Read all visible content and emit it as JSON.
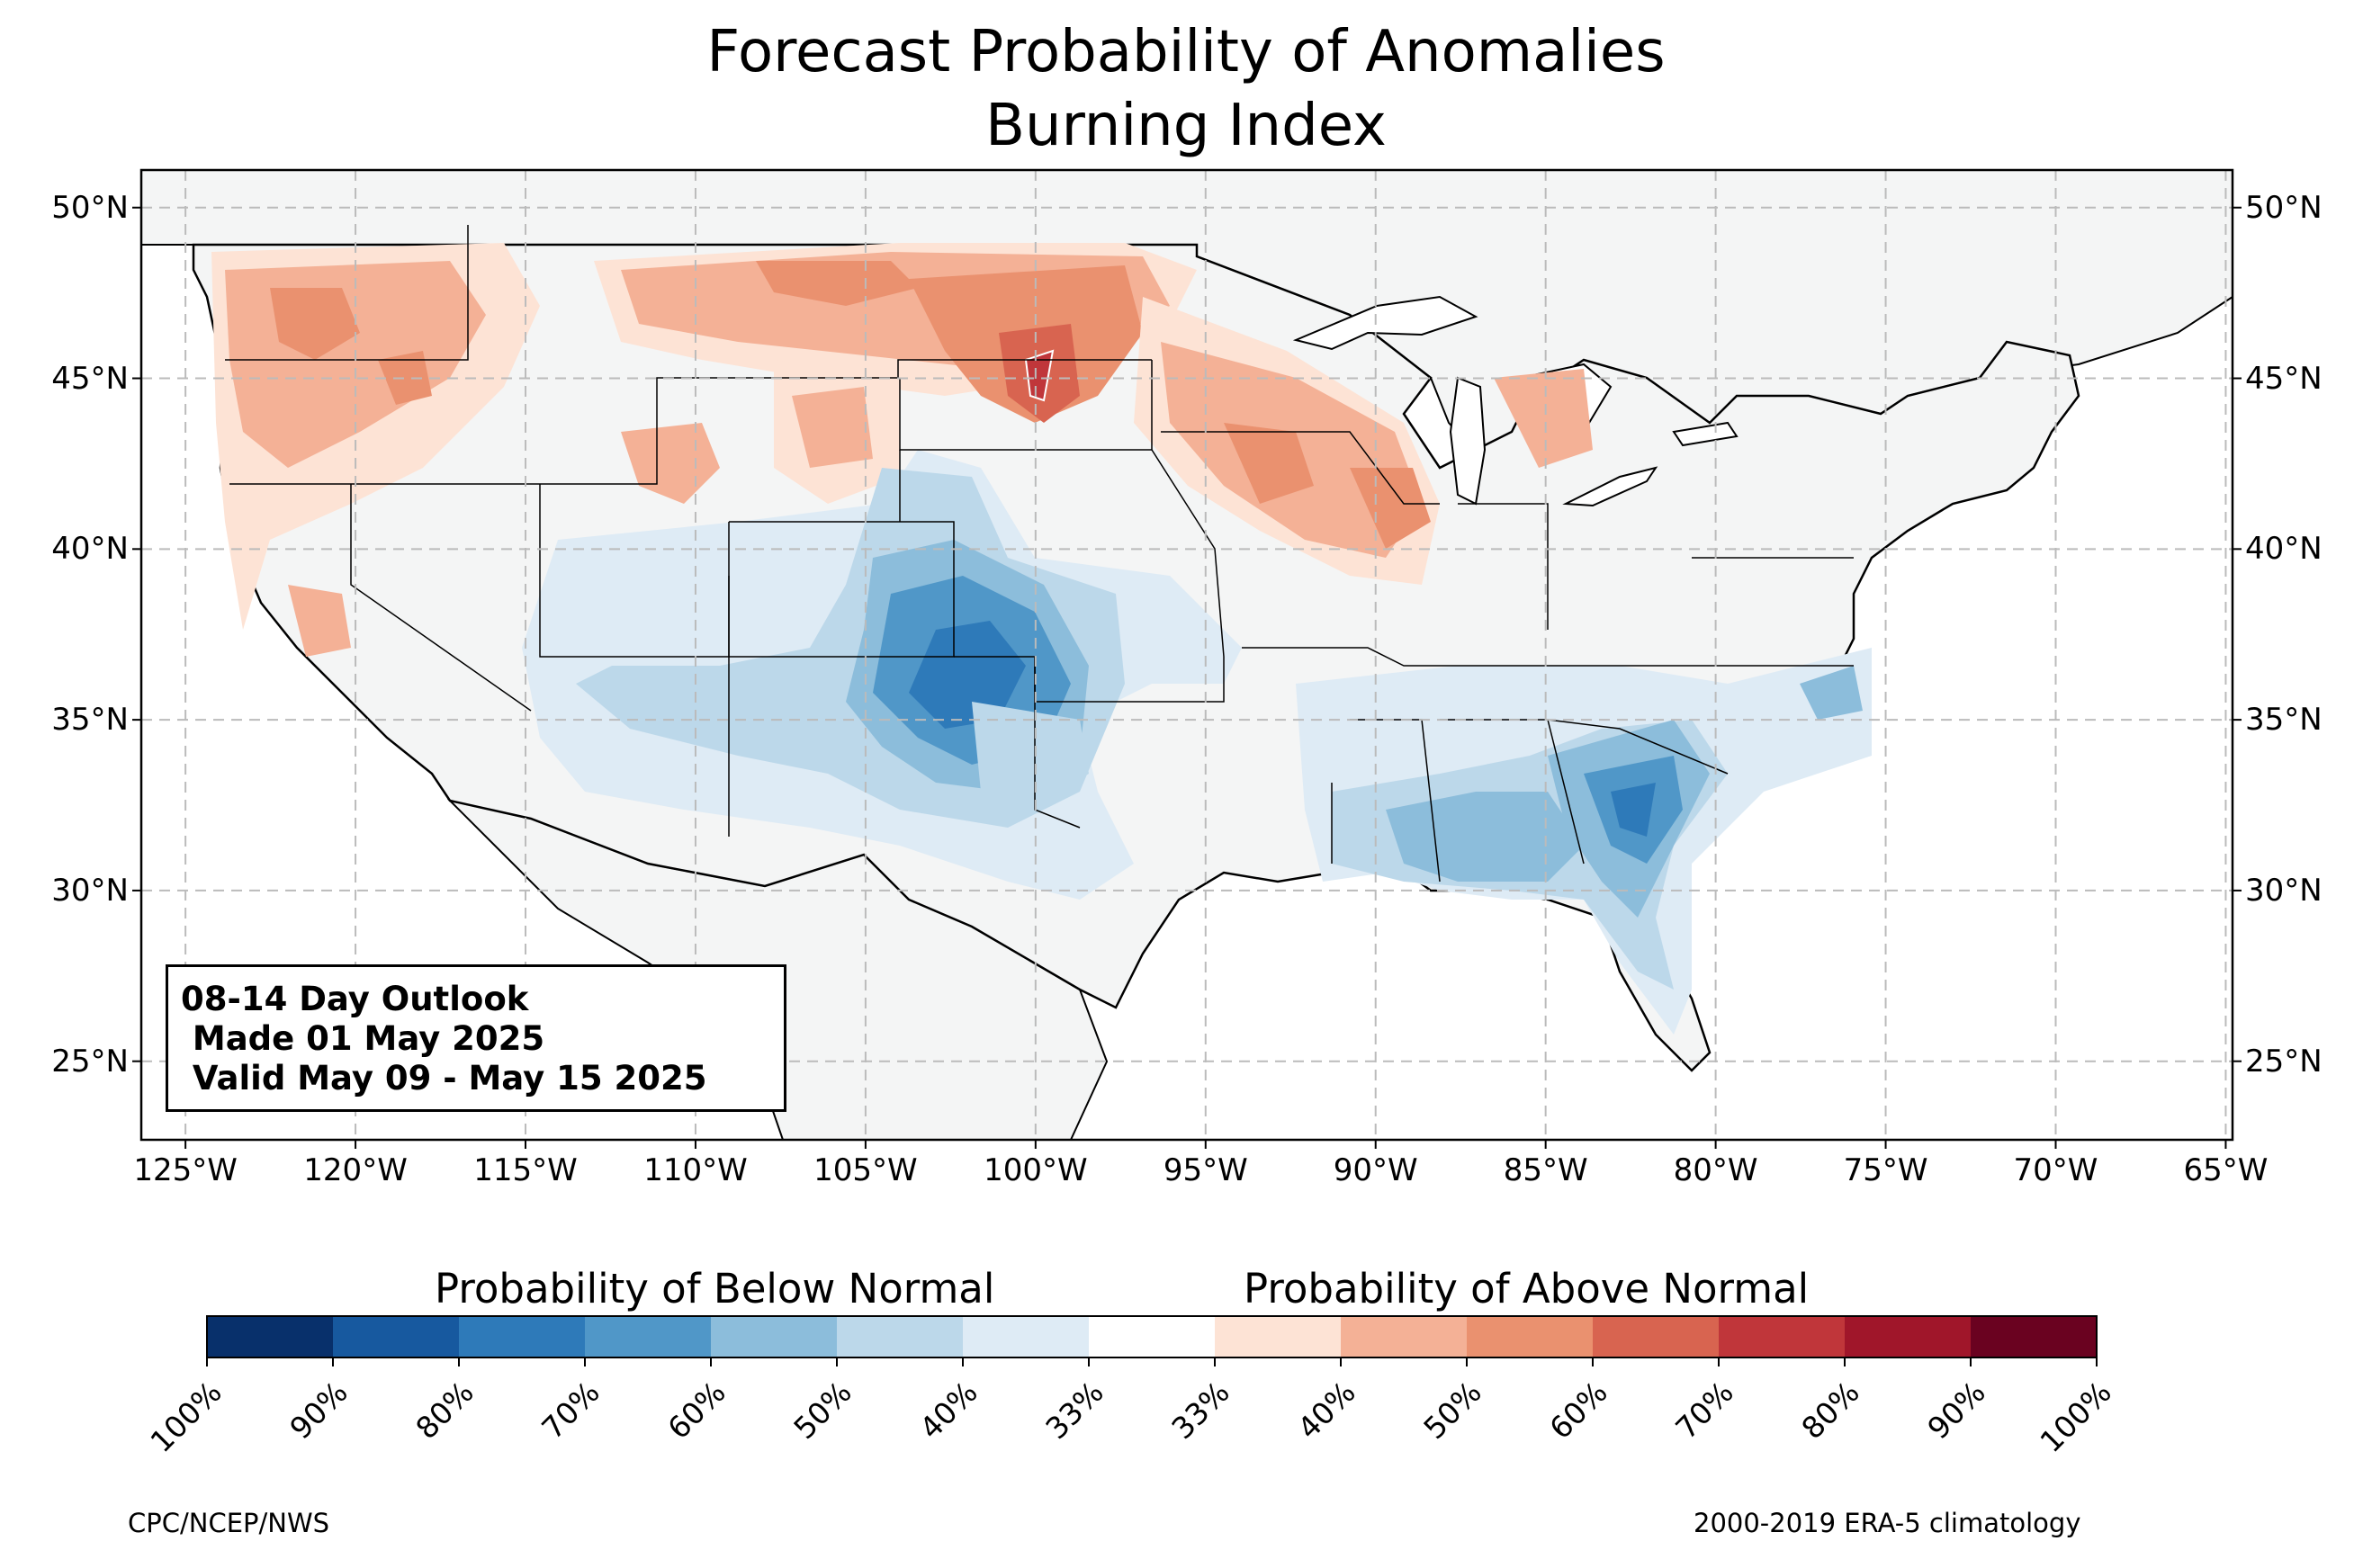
{
  "title": {
    "line1": "Forecast Probability of Anomalies",
    "line2": "Burning Index"
  },
  "map": {
    "lat_labels": [
      "50°N",
      "45°N",
      "40°N",
      "35°N",
      "30°N",
      "25°N"
    ],
    "lat_values": [
      50,
      45,
      40,
      35,
      30,
      25
    ],
    "lon_labels": [
      "125°W",
      "120°W",
      "115°W",
      "110°W",
      "105°W",
      "100°W",
      "95°W",
      "90°W",
      "85°W",
      "80°W",
      "75°W",
      "70°W",
      "65°W"
    ],
    "lon_values": [
      -125,
      -120,
      -115,
      -110,
      -105,
      -100,
      -95,
      -90,
      -85,
      -80,
      -75,
      -70,
      -65
    ],
    "extent": {
      "lon_min": -126.3,
      "lon_max": -64.8,
      "lat_min": 22.7,
      "lat_max": 51.1
    },
    "grid": true,
    "land_color": "#f4f5f5",
    "border_color": "#000000"
  },
  "infobox": {
    "line1": "08-14 Day Outlook",
    "line2": " Made 01 May 2025",
    "line3": " Valid May 09 - May 15 2025"
  },
  "colorbar": {
    "below_heading": "Probability of Below Normal",
    "above_heading": "Probability of Above Normal",
    "tick_labels": [
      "100%",
      "90%",
      "80%",
      "70%",
      "60%",
      "50%",
      "40%",
      "33%",
      "33%",
      "40%",
      "50%",
      "60%",
      "70%",
      "80%",
      "90%",
      "100%"
    ],
    "colors": [
      "#08306b",
      "#17599f",
      "#2e7ab9",
      "#5097c8",
      "#8cbddb",
      "#bcd8ea",
      "#deebf5",
      "#ffffff",
      "#fde3d5",
      "#f4b196",
      "#ea916f",
      "#d86450",
      "#c0363a",
      "#a0162a",
      "#6a0220"
    ]
  },
  "footer": {
    "left": "CPC/NCEP/NWS",
    "right": "2000-2019 ERA-5 climatology"
  }
}
